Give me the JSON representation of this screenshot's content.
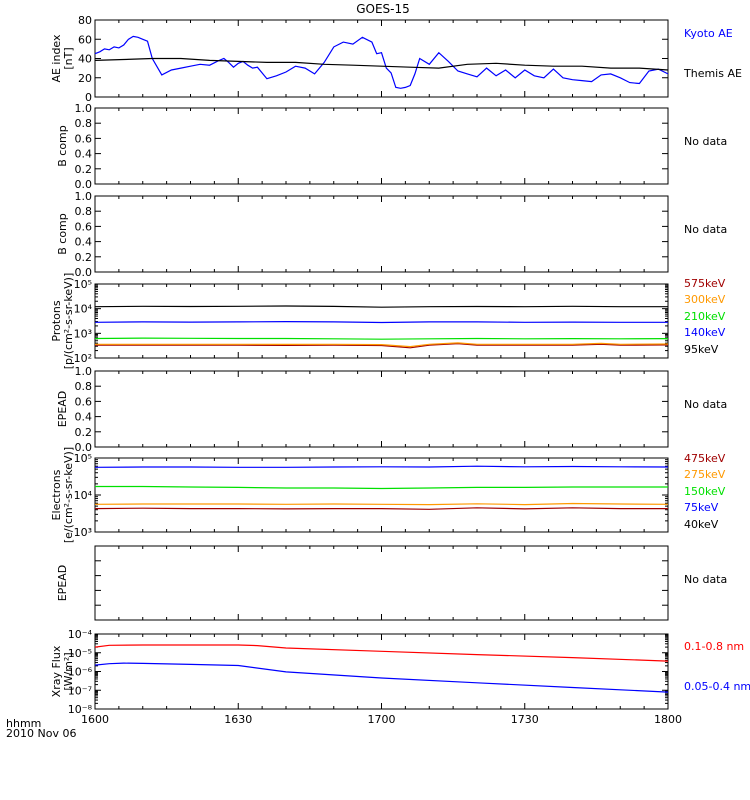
{
  "title": "GOES-15",
  "time_label": "hhmm",
  "date_label": "2010 Nov 06",
  "x_ticks": [
    "1600",
    "1630",
    "1700",
    "1730",
    "1800"
  ],
  "colors": {
    "black": "#000000",
    "blue": "#0000ff",
    "green": "#00e000",
    "orange": "#ff9900",
    "darkred": "#a00000",
    "red": "#ff0000"
  },
  "chart_data": [
    {
      "type": "line",
      "panel": "ae",
      "ylabel": [
        "AE index",
        "[nT]"
      ],
      "ylim": [
        0,
        80
      ],
      "yticks": [
        0,
        20,
        40,
        60,
        80
      ],
      "ytick_labels": [
        "0",
        "20",
        "40",
        "60",
        "80"
      ],
      "x_unit": "minutes after 1600",
      "series": [
        {
          "name": "Kyoto AE",
          "color": "blue",
          "x": [
            0,
            1,
            2,
            3,
            4,
            5,
            6,
            7,
            8,
            9,
            10,
            11,
            12,
            14,
            16,
            18,
            20,
            22,
            24,
            26,
            27,
            28,
            29,
            30,
            31,
            32,
            33,
            34,
            36,
            38,
            40,
            42,
            44,
            46,
            48,
            50,
            52,
            54,
            56,
            58,
            59,
            60,
            61,
            62,
            63,
            64,
            65,
            66,
            67,
            68,
            70,
            72,
            74,
            76,
            78,
            80,
            82,
            84,
            86,
            88,
            90,
            92,
            94,
            96,
            98,
            100,
            102,
            104,
            106,
            108,
            110,
            112,
            114,
            116,
            118,
            120
          ],
          "y": [
            45,
            47,
            50,
            49,
            52,
            51,
            54,
            60,
            63,
            62,
            60,
            58,
            40,
            23,
            28,
            30,
            32,
            34,
            33,
            38,
            40,
            36,
            31,
            35,
            37,
            33,
            30,
            31,
            19,
            22,
            26,
            32,
            30,
            24,
            36,
            52,
            57,
            55,
            62,
            57,
            45,
            46,
            30,
            25,
            10,
            9,
            10,
            12,
            24,
            40,
            34,
            46,
            37,
            27,
            24,
            21,
            30,
            22,
            28,
            20,
            28,
            22,
            20,
            29,
            20,
            18,
            17,
            16,
            23,
            24,
            20,
            15,
            14,
            27,
            29,
            24
          ]
        },
        {
          "name": "Themis AE",
          "color": "black",
          "x": [
            0,
            6,
            12,
            18,
            24,
            30,
            36,
            42,
            48,
            54,
            60,
            66,
            72,
            78,
            84,
            90,
            96,
            102,
            108,
            114,
            120
          ],
          "y": [
            38,
            39,
            40,
            40,
            38,
            37,
            36,
            36,
            34,
            33,
            32,
            31,
            30,
            34,
            35,
            33,
            32,
            32,
            30,
            30,
            28
          ]
        }
      ]
    },
    {
      "type": "line",
      "panel": "b1",
      "ylabel": [
        "B comp"
      ],
      "ylim": [
        0.0,
        1.0
      ],
      "yticks": [
        0,
        0.2,
        0.4,
        0.6,
        0.8,
        1.0
      ],
      "ytick_labels": [
        "0.0",
        "0.2",
        "0.4",
        "0.6",
        "0.8",
        "1.0"
      ],
      "note": "No data",
      "series": []
    },
    {
      "type": "line",
      "panel": "b2",
      "ylabel": [
        "B comp"
      ],
      "ylim": [
        0.0,
        1.0
      ],
      "yticks": [
        0,
        0.2,
        0.4,
        0.6,
        0.8,
        1.0
      ],
      "ytick_labels": [
        "0.0",
        "0.2",
        "0.4",
        "0.6",
        "0.8",
        "1.0"
      ],
      "note": "No data",
      "series": []
    },
    {
      "type": "line",
      "panel": "protons",
      "ylabel": [
        "Protons",
        "[p/(cm²-s-sr-keV)]"
      ],
      "log": true,
      "ylim": [
        100,
        100000
      ],
      "yticks": [
        100,
        1000,
        10000,
        100000
      ],
      "ytick_labels": [
        "10²",
        "10³",
        "10⁴",
        "10⁵"
      ],
      "x_unit": "minutes after 1600",
      "series": [
        {
          "name": "575keV",
          "color": "darkred",
          "x": [
            0,
            10,
            20,
            30,
            40,
            50,
            60,
            66,
            70,
            76,
            80,
            90,
            100,
            106,
            110,
            120
          ],
          "y": [
            330,
            330,
            330,
            330,
            325,
            330,
            320,
            260,
            330,
            380,
            330,
            330,
            330,
            360,
            330,
            340
          ]
        },
        {
          "name": "300keV",
          "color": "orange",
          "x": [
            0,
            10,
            20,
            30,
            40,
            50,
            60,
            66,
            70,
            76,
            80,
            90,
            100,
            106,
            110,
            120
          ],
          "y": [
            360,
            360,
            360,
            360,
            355,
            360,
            350,
            290,
            360,
            410,
            360,
            360,
            360,
            390,
            360,
            370
          ]
        },
        {
          "name": "210keV",
          "color": "green",
          "x": [
            0,
            10,
            20,
            30,
            40,
            50,
            60,
            70,
            80,
            90,
            100,
            110,
            120
          ],
          "y": [
            620,
            640,
            630,
            620,
            620,
            600,
            580,
            600,
            620,
            600,
            610,
            600,
            610
          ]
        },
        {
          "name": "140keV",
          "color": "blue",
          "x": [
            0,
            10,
            20,
            30,
            40,
            50,
            60,
            70,
            80,
            90,
            100,
            110,
            120
          ],
          "y": [
            2800,
            2900,
            2850,
            2900,
            3000,
            2900,
            2750,
            2900,
            2900,
            2800,
            2850,
            2800,
            2800
          ]
        },
        {
          "name": "95keV",
          "color": "black",
          "x": [
            0,
            10,
            20,
            30,
            40,
            50,
            60,
            70,
            80,
            90,
            100,
            110,
            120
          ],
          "y": [
            12000,
            12500,
            12200,
            12500,
            12800,
            12300,
            11500,
            12000,
            12200,
            12000,
            12500,
            12000,
            12000
          ]
        }
      ]
    },
    {
      "type": "line",
      "panel": "epead1",
      "ylabel": [
        "EPEAD"
      ],
      "ylim": [
        0.0,
        1.0
      ],
      "yticks": [
        0,
        0.2,
        0.4,
        0.6,
        0.8,
        1.0
      ],
      "ytick_labels": [
        "0.0",
        "0.2",
        "0.4",
        "0.6",
        "0.8",
        "1.0"
      ],
      "note": "No data",
      "series": []
    },
    {
      "type": "line",
      "panel": "electrons",
      "ylabel": [
        "Electrons",
        "[e/(cm²-s-sr-keV)]"
      ],
      "log": true,
      "ylim": [
        1000,
        100000
      ],
      "yticks": [
        1000,
        10000,
        100000
      ],
      "ytick_labels": [
        "10³",
        "10⁴",
        "10⁵"
      ],
      "x_unit": "minutes after 1600",
      "series": [
        {
          "name": "475keV",
          "color": "darkred",
          "x": [
            0,
            10,
            20,
            30,
            40,
            50,
            60,
            70,
            80,
            90,
            100,
            110,
            120
          ],
          "y": [
            4300,
            4400,
            4300,
            4300,
            4200,
            4300,
            4300,
            4100,
            4500,
            4200,
            4500,
            4300,
            4300
          ]
        },
        {
          "name": "275keV",
          "color": "orange",
          "x": [
            0,
            10,
            20,
            30,
            40,
            50,
            60,
            70,
            80,
            90,
            100,
            110,
            120
          ],
          "y": [
            5600,
            5700,
            5700,
            5700,
            5600,
            5700,
            5600,
            5500,
            5800,
            5500,
            5900,
            5700,
            5600
          ]
        },
        {
          "name": "150keV",
          "color": "green",
          "x": [
            0,
            10,
            20,
            30,
            40,
            50,
            60,
            70,
            80,
            90,
            100,
            110,
            120
          ],
          "y": [
            17000,
            17000,
            16500,
            16000,
            15500,
            15500,
            15000,
            15500,
            16000,
            16000,
            16500,
            16500,
            16500
          ]
        },
        {
          "name": "75keV",
          "color": "blue",
          "x": [
            0,
            10,
            20,
            30,
            40,
            50,
            60,
            70,
            80,
            90,
            100,
            110,
            120
          ],
          "y": [
            56000,
            57000,
            57000,
            56000,
            56000,
            57000,
            58000,
            57000,
            60000,
            58000,
            59000,
            58000,
            57000
          ]
        },
        {
          "name": "40keV",
          "color": "black",
          "x": [
            0,
            120
          ],
          "y": [
            null,
            null
          ]
        }
      ]
    },
    {
      "type": "line",
      "panel": "epead2",
      "ylabel": [
        "EPEAD"
      ],
      "ylim": [
        0.0,
        1.0
      ],
      "yticks": [
        0,
        0.2,
        0.4,
        0.6,
        0.8,
        1.0
      ],
      "ytick_labels": [],
      "note": "No data",
      "series": []
    },
    {
      "type": "line",
      "panel": "xray",
      "ylabel": [
        "Xray Flux",
        "[W/m²]"
      ],
      "log": true,
      "ylim": [
        1e-08,
        0.0001
      ],
      "yticks": [
        1e-08,
        1e-07,
        1e-06,
        1e-05,
        0.0001
      ],
      "ytick_labels": [
        "10⁻⁸",
        "10⁻⁷",
        "10⁻⁶",
        "10⁻⁵",
        "10⁻⁴"
      ],
      "x_unit": "minutes after 1600",
      "series": [
        {
          "name": "0.1-0.8 nm",
          "color": "red",
          "x": [
            0,
            3,
            10,
            20,
            30,
            34,
            40,
            60,
            80,
            100,
            120
          ],
          "y": [
            2e-05,
            2.5e-05,
            2.6e-05,
            2.6e-05,
            2.6e-05,
            2.4e-05,
            1.8e-05,
            1.2e-05,
            8e-06,
            5.5e-06,
            3.6e-06
          ]
        },
        {
          "name": "0.05-0.4 nm",
          "color": "blue",
          "x": [
            0,
            3,
            6,
            10,
            20,
            30,
            40,
            60,
            80,
            100,
            120
          ],
          "y": [
            2.2e-06,
            2.6e-06,
            2.8e-06,
            2.7e-06,
            2.4e-06,
            2.1e-06,
            9.5e-07,
            4.5e-07,
            2.5e-07,
            1.4e-07,
            8e-08
          ]
        }
      ]
    }
  ]
}
